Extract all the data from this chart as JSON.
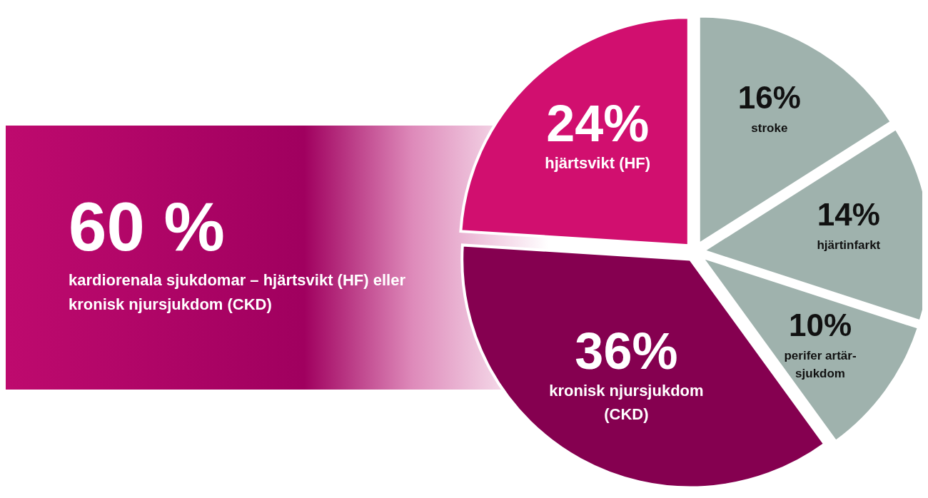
{
  "chart_data": {
    "type": "pie",
    "categories": [
      "stroke",
      "hjärtinfarkt",
      "perifer artär-sjukdom",
      "kronisk njursjukdom (CKD)",
      "hjärtsvikt (HF)"
    ],
    "values": [
      16,
      14,
      10,
      36,
      24
    ],
    "colors": [
      "#9fb2ad",
      "#9fb2ad",
      "#9fb2ad",
      "#850050",
      "#d10f6f"
    ],
    "value_labels": [
      "16%",
      "14%",
      "10%",
      "36%",
      "24%"
    ],
    "legend": false,
    "annotations": [
      "60 %",
      "kardiorenala sjukdomar – hjärtsvikt (HF) eller kronisk njursjukdom (CKD)"
    ]
  }
}
